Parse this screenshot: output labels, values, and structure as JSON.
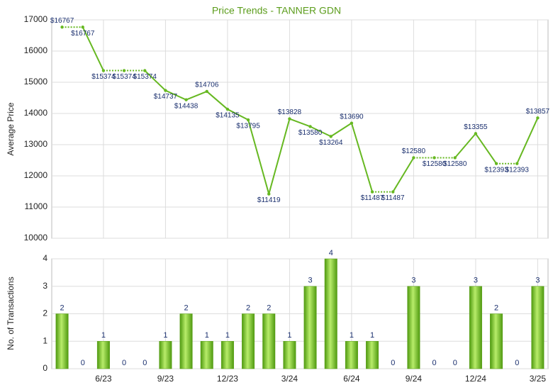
{
  "chart_data": [
    {
      "type": "line",
      "title": "Price Trends - TANNER GDN",
      "ylabel": "Average Price",
      "values": [
        16767,
        16767,
        15374,
        15374,
        15374,
        14737,
        14438,
        14706,
        14135,
        13795,
        11419,
        13828,
        13580,
        13264,
        13690,
        11487,
        11487,
        12580,
        12580,
        12580,
        13355,
        12393,
        12393,
        13857
      ],
      "value_labels": [
        "$16767",
        "$16767",
        "$15374",
        "$15374",
        "$15374",
        "$14737",
        "$14438",
        "$14706",
        "$14135",
        "$13795",
        "$11419",
        "$13828",
        "$13580",
        "$13264",
        "$13690",
        "$11487",
        "$11487",
        "$12580",
        "$12580",
        "$12580",
        "$13355",
        "$12393",
        "$12393",
        "$13857"
      ],
      "color": "#66b821",
      "ylim": [
        10000,
        17000
      ],
      "yticks": [
        10000,
        11000,
        12000,
        13000,
        14000,
        15000,
        16000,
        17000
      ],
      "grid": true
    },
    {
      "type": "bar",
      "ylabel": "No. of Transactions",
      "categories": [
        null,
        null,
        "6/23",
        null,
        null,
        "9/23",
        null,
        null,
        "12/23",
        null,
        null,
        "3/24",
        null,
        null,
        "6/24",
        null,
        null,
        "9/24",
        null,
        null,
        "12/24",
        null,
        null,
        "3/25"
      ],
      "values": [
        2,
        0,
        1,
        0,
        0,
        1,
        2,
        1,
        1,
        2,
        2,
        1,
        3,
        4,
        1,
        1,
        0,
        3,
        0,
        0,
        3,
        2,
        0,
        3
      ],
      "color": "#7cc42a",
      "ylim": [
        0,
        4
      ],
      "yticks": [
        0,
        1,
        2,
        3,
        4
      ],
      "grid": true
    }
  ]
}
